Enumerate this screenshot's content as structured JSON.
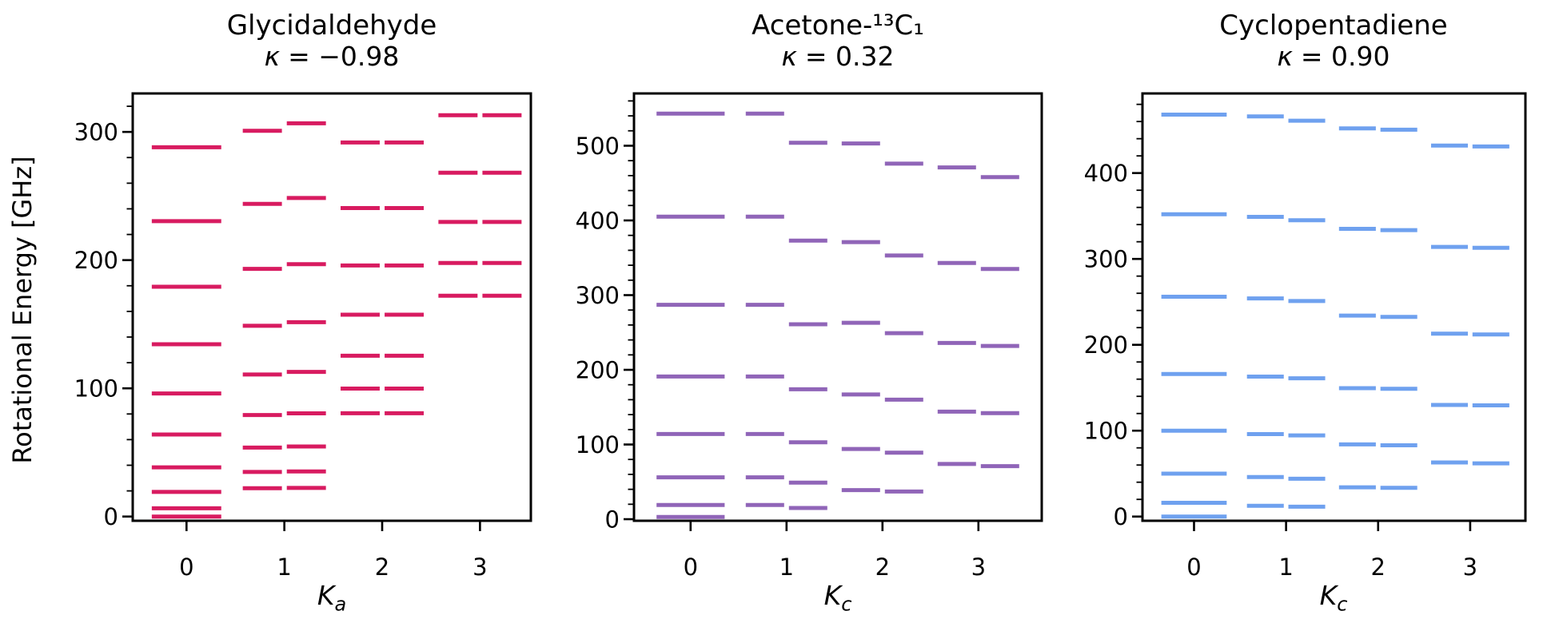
{
  "figure": {
    "ylabel": "Rotational Energy [GHz]",
    "background": "#ffffff",
    "text_color": "#000000"
  },
  "chart_data": [
    {
      "type": "energy_level_diagram",
      "title": "Glycidaldehyde",
      "kappa_symbol": "κ",
      "kappa_rest": "= −0.98",
      "xlabel_base": "K",
      "xlabel_sub": "a",
      "ylabel": "Rotational Energy [GHz]",
      "color": "#d81b60",
      "x_ticks": [
        "0",
        "1",
        "2",
        "3"
      ],
      "y_ticks": [
        0,
        100,
        200,
        300
      ],
      "y_minor_step": 20,
      "xlim": [
        -0.55,
        3.52
      ],
      "ylim": [
        -3.3,
        330
      ],
      "legend": "none",
      "grid": false,
      "levels": {
        "K0": [
          0,
          6.4,
          19.2,
          38.4,
          64,
          96,
          134.4,
          179.2,
          230.4,
          288
        ],
        "K1": [
          [
            22.1,
            22.3
          ],
          [
            34.8,
            35.2
          ],
          [
            53.8,
            54.6
          ],
          [
            79.2,
            80.5
          ],
          [
            110.8,
            112.8
          ],
          [
            148.8,
            151.6
          ],
          [
            193.2,
            196.8
          ],
          [
            243.9,
            248.5
          ],
          [
            300.9,
            306.7
          ]
        ],
        "K2": [
          [
            80.6,
            80.6
          ],
          [
            99.8,
            99.8
          ],
          [
            125.4,
            125.4
          ],
          [
            157.4,
            157.4
          ],
          [
            195.8,
            195.8
          ],
          [
            240.6,
            240.6
          ],
          [
            291.8,
            291.8
          ]
        ],
        "K3": [
          [
            172.2,
            172.2
          ],
          [
            197.8,
            197.8
          ],
          [
            229.8,
            229.8
          ],
          [
            268.2,
            268.2
          ],
          [
            313,
            313
          ]
        ]
      }
    },
    {
      "type": "energy_level_diagram",
      "title": "Acetone-¹³C₁",
      "kappa_symbol": "κ",
      "kappa_rest": "= 0.32",
      "xlabel_base": "K",
      "xlabel_sub": "c",
      "color": "#9065b8",
      "x_ticks": [
        "0",
        "1",
        "2",
        "3"
      ],
      "y_ticks": [
        0,
        100,
        200,
        300,
        400,
        500
      ],
      "y_minor_step": 20,
      "xlim": [
        -0.59,
        3.66
      ],
      "ylim": [
        -2.1,
        570
      ],
      "legend": "none",
      "grid": false,
      "levels": {
        "K0": [
          3,
          19,
          56,
          114,
          191,
          287,
          405,
          543
        ],
        "K1": [
          [
            19,
            15
          ],
          [
            56,
            49
          ],
          [
            114,
            103
          ],
          [
            191,
            174
          ],
          [
            287,
            261
          ],
          [
            405,
            373
          ],
          [
            543,
            504
          ]
        ],
        "K2": [
          [
            39,
            37
          ],
          [
            94,
            89
          ],
          [
            167,
            160
          ],
          [
            263,
            249
          ],
          [
            371,
            353
          ],
          [
            503,
            476
          ]
        ],
        "K3": [
          [
            74,
            71
          ],
          [
            144,
            142
          ],
          [
            236,
            232
          ],
          [
            343,
            335
          ],
          [
            471,
            458
          ]
        ]
      }
    },
    {
      "type": "energy_level_diagram",
      "title": "Cyclopentadiene",
      "kappa_symbol": "κ",
      "kappa_rest": "= 0.90",
      "xlabel_base": "K",
      "xlabel_sub": "c",
      "color": "#6fa1ef",
      "x_ticks": [
        "0",
        "1",
        "2",
        "3"
      ],
      "y_ticks": [
        0,
        100,
        200,
        300,
        400
      ],
      "y_minor_step": 20,
      "xlim": [
        -0.56,
        3.6
      ],
      "ylim": [
        -4.9,
        492.7
      ],
      "legend": "none",
      "grid": false,
      "levels": {
        "K0": [
          0,
          16,
          50,
          100,
          166,
          256,
          352,
          468
        ],
        "K1": [
          [
            12.5,
            11.5
          ],
          [
            46,
            44
          ],
          [
            96,
            94.5
          ],
          [
            163,
            161
          ],
          [
            254,
            251
          ],
          [
            349,
            345
          ],
          [
            466,
            461
          ]
        ],
        "K2": [
          [
            34,
            33.5
          ],
          [
            84,
            83
          ],
          [
            149.5,
            148.8
          ],
          [
            234,
            232.5
          ],
          [
            335,
            333.5
          ],
          [
            452,
            450.5
          ]
        ],
        "K3": [
          [
            63,
            62
          ],
          [
            130,
            129.5
          ],
          [
            213,
            212
          ],
          [
            314,
            313
          ],
          [
            432,
            431
          ]
        ]
      }
    }
  ]
}
